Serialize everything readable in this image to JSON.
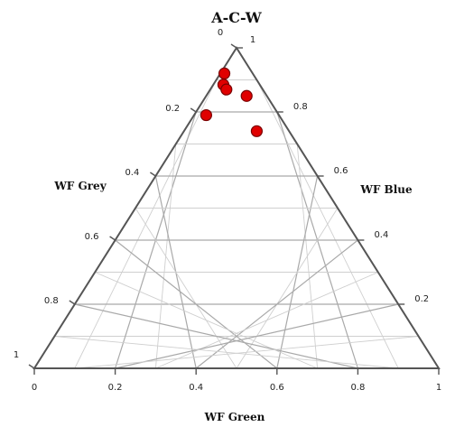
{
  "chart_data": {
    "type": "scatter",
    "subtype": "ternary",
    "title": "A-C-W",
    "axes": {
      "bottom": {
        "label": "WF Green",
        "ticks": [
          0,
          0.2,
          0.4,
          0.6,
          0.8,
          1
        ],
        "tick_labels": [
          "0",
          "0.2",
          "0.4",
          "0.6",
          "0.8",
          "1"
        ]
      },
      "right": {
        "label": "WF Blue",
        "ticks": [
          0.2,
          0.4,
          0.6,
          0.8,
          1
        ],
        "tick_labels": [
          "0.2",
          "0.4",
          "0.6",
          "0.8",
          "1"
        ]
      },
      "left": {
        "label": "WF Grey",
        "ticks": [
          0,
          0.2,
          0.4,
          0.6,
          0.8,
          1
        ],
        "tick_labels": [
          "0",
          "0.2",
          "0.4",
          "0.6",
          "0.8",
          "1"
        ]
      }
    },
    "grid": true,
    "grid_step": 0.1,
    "points": [
      {
        "green": 0.01,
        "blue": 0.92,
        "grey": 0.07
      },
      {
        "green": 0.025,
        "blue": 0.885,
        "grey": 0.09
      },
      {
        "green": 0.04,
        "blue": 0.87,
        "grey": 0.09
      },
      {
        "green": 0.1,
        "blue": 0.85,
        "grey": 0.05
      },
      {
        "green": 0.03,
        "blue": 0.79,
        "grey": 0.18
      },
      {
        "green": 0.18,
        "blue": 0.74,
        "grey": 0.08
      }
    ],
    "marker_color": "#e00000",
    "marker_stroke": "#7a0000",
    "frame_color": "#555555",
    "major_grid_color": "#a9a9a9",
    "minor_grid_color": "#cfcfcf"
  }
}
